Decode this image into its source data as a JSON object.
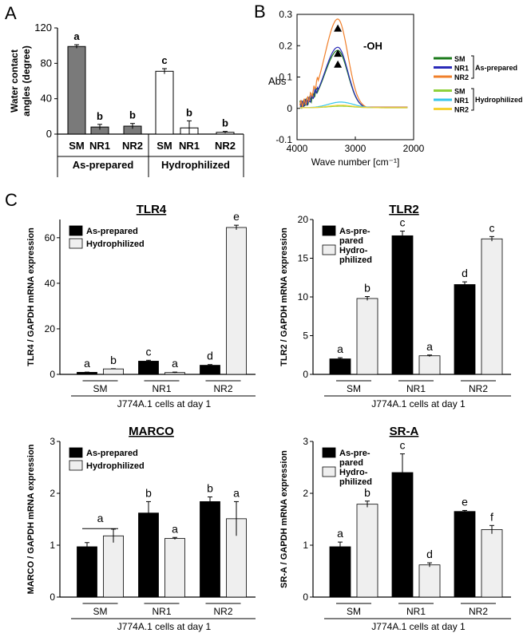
{
  "panel_labels": {
    "a": "A",
    "b": "B",
    "c": "C"
  },
  "chart_data": [
    {
      "id": "A",
      "type": "bar",
      "ylabel_lines": [
        "Water contact",
        "angles (degree)"
      ],
      "ylim": [
        0,
        120
      ],
      "yticks": [
        0,
        40,
        80,
        120
      ],
      "categories": [
        "SM",
        "NR1",
        "NR2",
        "SM",
        "NR1",
        "NR2"
      ],
      "groups": [
        "As-prepared",
        "Hydrophilized"
      ],
      "values": [
        99,
        8,
        9,
        71,
        7,
        2
      ],
      "errors": [
        2,
        3,
        3,
        3,
        8,
        1
      ],
      "letters": [
        "a",
        "b",
        "b",
        "c",
        "b",
        "b"
      ],
      "fill_colors": [
        "#7a7a7a",
        "#7a7a7a",
        "#7a7a7a",
        "#ffffff",
        "#ffffff",
        "#ffffff"
      ]
    },
    {
      "id": "B",
      "type": "line",
      "ylabel": "Abs",
      "xlabel": "Wave number [cm⁻¹]",
      "xlim": [
        4000,
        2000
      ],
      "xticks": [
        4000,
        3000,
        2000
      ],
      "ylim": [
        -0.1,
        0.3
      ],
      "yticks": [
        -0.1,
        0,
        0.1,
        0.2,
        0.3
      ],
      "annotation": "-OH",
      "legend_groups": [
        "As-prepared",
        "Hydrophilized"
      ],
      "series": [
        {
          "name": "SM",
          "group": "As-prepared",
          "color": "#1b7a1b",
          "peak_x": 3300,
          "peak_y": 0.185
        },
        {
          "name": "NR1",
          "group": "As-prepared",
          "color": "#2a2ab8",
          "peak_x": 3300,
          "peak_y": 0.195
        },
        {
          "name": "NR2",
          "group": "As-prepared",
          "color": "#f07f2a",
          "peak_x": 3300,
          "peak_y": 0.285
        },
        {
          "name": "SM",
          "group": "Hydrophilized",
          "color": "#8fd13a",
          "peak_x": 3300,
          "peak_y": 0.005
        },
        {
          "name": "NR1",
          "group": "Hydrophilized",
          "color": "#36c6ea",
          "peak_x": 3300,
          "peak_y": 0.018
        },
        {
          "name": "NR2",
          "group": "Hydrophilized",
          "color": "#f5d234",
          "peak_x": 3300,
          "peak_y": 0.008
        }
      ]
    },
    {
      "id": "TLR4",
      "type": "bar",
      "title": "TLR4",
      "ylabel": "TLR4 / GAPDH mRNA expression",
      "ylim": [
        0,
        68
      ],
      "yticks": [
        0,
        20,
        40,
        60
      ],
      "categories": [
        "SM",
        "NR1",
        "NR2"
      ],
      "xlabel": "J774A.1 cells at day 1",
      "series": [
        {
          "name": "As-prepared",
          "color": "#000000",
          "values": [
            0.9,
            5.8,
            4.0
          ],
          "errors": [
            0.1,
            0.4,
            0.3
          ],
          "letters": [
            "a",
            "c",
            "d"
          ]
        },
        {
          "name": "Hydrophilized",
          "color": "#efefef",
          "values": [
            2.4,
            0.8,
            64.5
          ],
          "errors": [
            0.1,
            0.2,
            1.0
          ],
          "letters": [
            "b",
            "a",
            "e"
          ]
        }
      ]
    },
    {
      "id": "TLR2",
      "type": "bar",
      "title": "TLR2",
      "ylabel": "TLR2 / GAPDH mRNA expression",
      "ylim": [
        0,
        20
      ],
      "yticks": [
        0,
        5,
        10,
        15,
        20
      ],
      "categories": [
        "SM",
        "NR1",
        "NR2"
      ],
      "xlabel": "J774A.1 cells at day 1",
      "series": [
        {
          "name": "As-pre-\npared",
          "color": "#000000",
          "values": [
            2.0,
            17.9,
            11.6
          ],
          "errors": [
            0.15,
            0.6,
            0.35
          ],
          "letters": [
            "a",
            "c",
            "d"
          ]
        },
        {
          "name": "Hydro-\nphilized",
          "color": "#efefef",
          "values": [
            9.8,
            2.4,
            17.5
          ],
          "errors": [
            0.25,
            0.1,
            0.3
          ],
          "letters": [
            "b",
            "a",
            "c"
          ]
        }
      ]
    },
    {
      "id": "MARCO",
      "type": "bar",
      "title": "MARCO",
      "ylabel": "MARCO / GAPDH mRNA expression",
      "ylim": [
        0,
        3
      ],
      "yticks": [
        0,
        1,
        2,
        3
      ],
      "categories": [
        "SM",
        "NR1",
        "NR2"
      ],
      "xlabel": "J774A.1 cells at day 1",
      "series": [
        {
          "name": "As-prepared",
          "color": "#000000",
          "values": [
            0.97,
            1.62,
            1.84
          ],
          "errors": [
            0.08,
            0.22,
            0.09
          ],
          "letters": [
            "",
            "b",
            "b"
          ]
        },
        {
          "name": "Hydrophilized",
          "color": "#efefef",
          "values": [
            1.18,
            1.13,
            1.51
          ],
          "errors": [
            0.13,
            0.02,
            0.33
          ],
          "letters": [
            "",
            "a",
            "a"
          ]
        }
      ],
      "shared_letter": "a"
    },
    {
      "id": "SRA",
      "type": "bar",
      "title": "SR-A",
      "ylabel": "SR-A / GAPDH mRNA expression",
      "ylim": [
        0,
        3
      ],
      "yticks": [
        0,
        1,
        2,
        3
      ],
      "categories": [
        "SM",
        "NR1",
        "NR2"
      ],
      "xlabel": "J774A.1 cells at day 1",
      "series": [
        {
          "name": "As-pre-\npared",
          "color": "#000000",
          "values": [
            0.97,
            2.4,
            1.65
          ],
          "errors": [
            0.09,
            0.36,
            0.02
          ],
          "letters": [
            "a",
            "c",
            "e"
          ]
        },
        {
          "name": "Hydro-\nphilized",
          "color": "#efefef",
          "values": [
            1.79,
            0.62,
            1.3
          ],
          "errors": [
            0.06,
            0.04,
            0.08
          ],
          "letters": [
            "b",
            "d",
            "f"
          ]
        }
      ]
    }
  ]
}
